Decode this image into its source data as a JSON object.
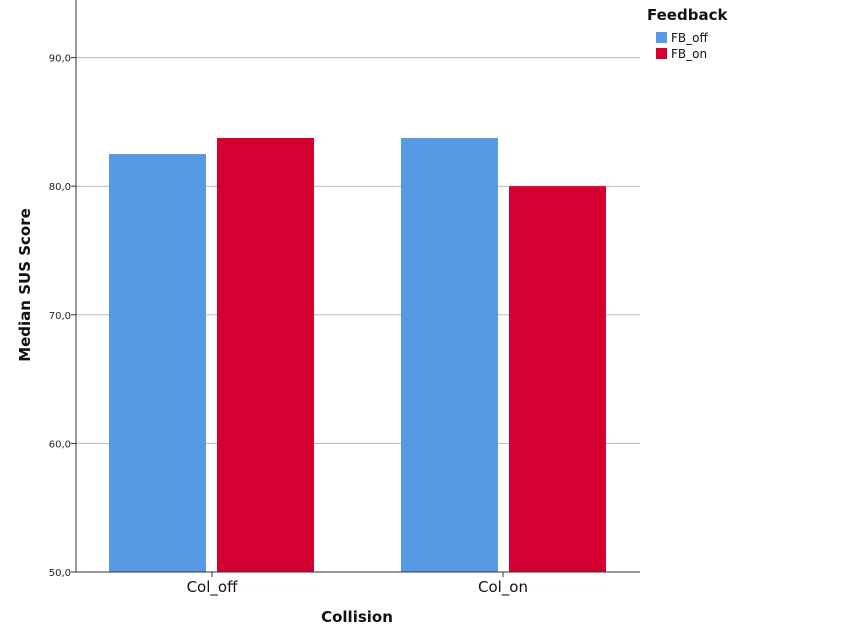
{
  "chart_data": {
    "type": "bar",
    "categories": [
      "Col_off",
      "Col_on"
    ],
    "series": [
      {
        "name": "FB_off",
        "values": [
          82.5,
          83.75
        ],
        "color": "#5899e3"
      },
      {
        "name": "FB_on",
        "values": [
          83.75,
          80.0
        ],
        "color": "#d40032"
      }
    ],
    "xlabel": "Collision",
    "ylabel": "Median SUS Score",
    "ylim": [
      50,
      100
    ],
    "yticks": [
      50,
      60,
      70,
      80,
      90
    ],
    "ytick_labels": [
      "50,0",
      "60,0",
      "70,0",
      "80,0",
      "90,0"
    ],
    "grid": true,
    "legend": {
      "title": "Feedback",
      "placement": "top-right"
    }
  }
}
